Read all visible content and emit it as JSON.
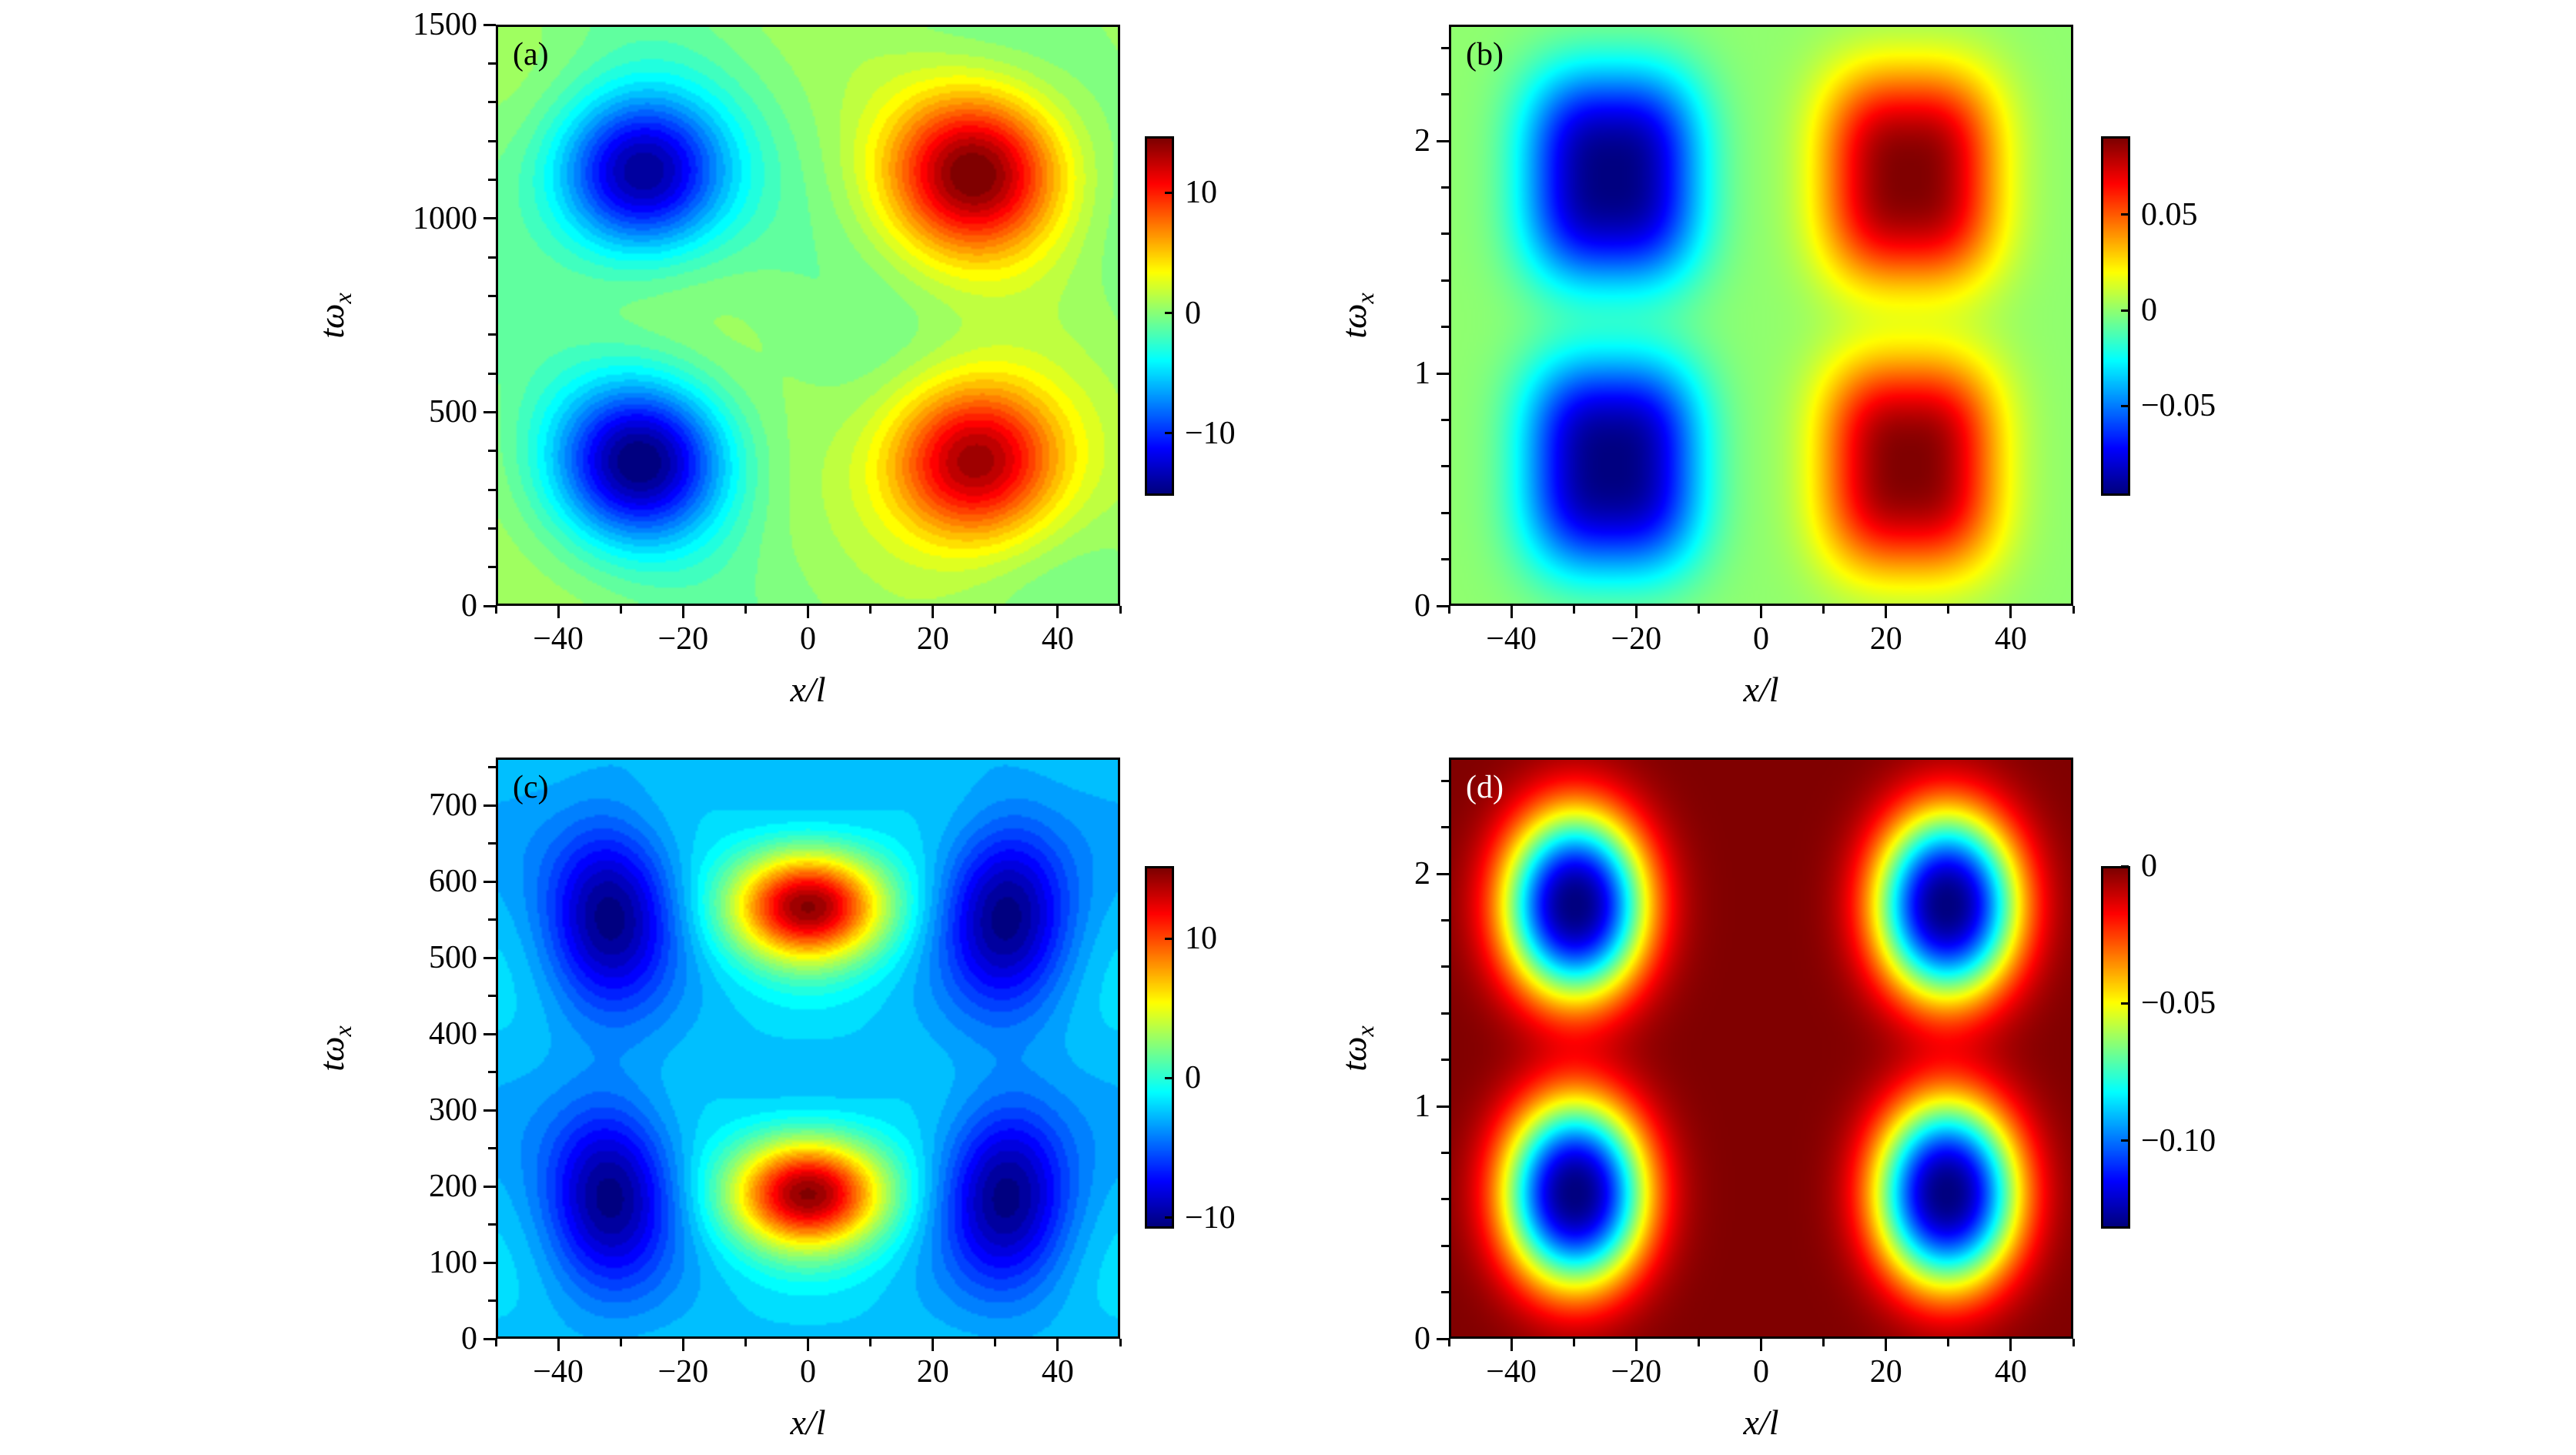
{
  "chart_data": [
    {
      "id": "a",
      "type": "heatmap",
      "panel_label": "(a)",
      "xlabel": "x/l",
      "ylabel": "tω",
      "ylabel_sub": "x",
      "xlim": [
        -50,
        50
      ],
      "ylim": [
        0,
        1500
      ],
      "xticks": [
        -40,
        -20,
        0,
        20,
        40
      ],
      "xtick_labels": [
        "−40",
        "−20",
        "0",
        "20",
        "40"
      ],
      "yticks": [
        0,
        500,
        1000,
        1500
      ],
      "ytick_labels": [
        "0",
        "500",
        "1000",
        "1500"
      ],
      "y_minor_step": 100,
      "colorbar": {
        "range": [
          -15.2,
          14.7
        ],
        "ticks": [
          -10,
          0,
          10
        ],
        "tick_labels": [
          "−10",
          "0",
          "10"
        ]
      },
      "features": [
        {
          "x": -27,
          "y": 1120,
          "value": -15
        },
        {
          "x": 27,
          "y": 1120,
          "value": 14.7
        },
        {
          "x": -27,
          "y": 370,
          "value": -15
        },
        {
          "x": 27,
          "y": 370,
          "value": 14.7
        }
      ]
    },
    {
      "id": "b",
      "type": "heatmap",
      "panel_label": "(b)",
      "xlabel": "x/l",
      "ylabel": "tω",
      "ylabel_sub": "x",
      "xlim": [
        -50,
        50
      ],
      "ylim": [
        0,
        2.5
      ],
      "xticks": [
        -40,
        -20,
        0,
        20,
        40
      ],
      "xtick_labels": [
        "−40",
        "−20",
        "0",
        "20",
        "40"
      ],
      "yticks": [
        0,
        1,
        2
      ],
      "ytick_labels": [
        "0",
        "1",
        "2"
      ],
      "y_minor_step": 0.2,
      "colorbar": {
        "range": [
          -0.097,
          0.091
        ],
        "ticks": [
          -0.05,
          0,
          0.05
        ],
        "tick_labels": [
          "−0.05",
          "0",
          "0.05"
        ]
      },
      "features": [
        {
          "x": -24,
          "y": 1.85,
          "value": -0.097
        },
        {
          "x": 24,
          "y": 1.85,
          "value": 0.091
        },
        {
          "x": -24,
          "y": 0.6,
          "value": -0.097
        },
        {
          "x": 24,
          "y": 0.6,
          "value": 0.091
        }
      ]
    },
    {
      "id": "c",
      "type": "heatmap",
      "panel_label": "(c)",
      "xlabel": "x/l",
      "ylabel": "tω",
      "ylabel_sub": "x",
      "xlim": [
        -50,
        50
      ],
      "ylim": [
        0,
        763
      ],
      "xticks": [
        -40,
        -20,
        0,
        20,
        40
      ],
      "xtick_labels": [
        "−40",
        "−20",
        "0",
        "20",
        "40"
      ],
      "yticks": [
        0,
        100,
        200,
        300,
        400,
        500,
        600,
        700
      ],
      "ytick_labels": [
        "0",
        "100",
        "200",
        "300",
        "400",
        "500",
        "600",
        "700"
      ],
      "y_minor_step": 50,
      "colorbar": {
        "range": [
          -10.8,
          15.2
        ],
        "ticks": [
          -10,
          0,
          10
        ],
        "tick_labels": [
          "−10",
          "0",
          "10"
        ]
      },
      "features": [
        {
          "x": -32,
          "y": 190,
          "value": -10.8
        },
        {
          "x": 0,
          "y": 190,
          "value": 15
        },
        {
          "x": 32,
          "y": 190,
          "value": -10.8
        },
        {
          "x": -32,
          "y": 560,
          "value": -10.8
        },
        {
          "x": 0,
          "y": 570,
          "value": 15
        },
        {
          "x": 32,
          "y": 560,
          "value": -10.8
        }
      ]
    },
    {
      "id": "d",
      "type": "heatmap",
      "panel_label": "(d)",
      "xlabel": "x/l",
      "ylabel": "tω",
      "ylabel_sub": "x",
      "xlim": [
        -50,
        50
      ],
      "ylim": [
        0,
        2.5
      ],
      "xticks": [
        -40,
        -20,
        0,
        20,
        40
      ],
      "xtick_labels": [
        "−40",
        "−20",
        "0",
        "20",
        "40"
      ],
      "yticks": [
        0,
        1,
        2
      ],
      "ytick_labels": [
        "0",
        "1",
        "2"
      ],
      "y_minor_step": 0.2,
      "colorbar": {
        "range": [
          -0.132,
          0
        ],
        "ticks": [
          -0.1,
          -0.05,
          0
        ],
        "tick_labels": [
          "−0.10",
          "−0.05",
          "0"
        ]
      },
      "features": [
        {
          "x": -30,
          "y": 1.87,
          "value": -0.132
        },
        {
          "x": 30,
          "y": 1.87,
          "value": -0.132
        },
        {
          "x": -30,
          "y": 0.62,
          "value": -0.132
        },
        {
          "x": 30,
          "y": 0.62,
          "value": -0.132
        }
      ]
    }
  ]
}
